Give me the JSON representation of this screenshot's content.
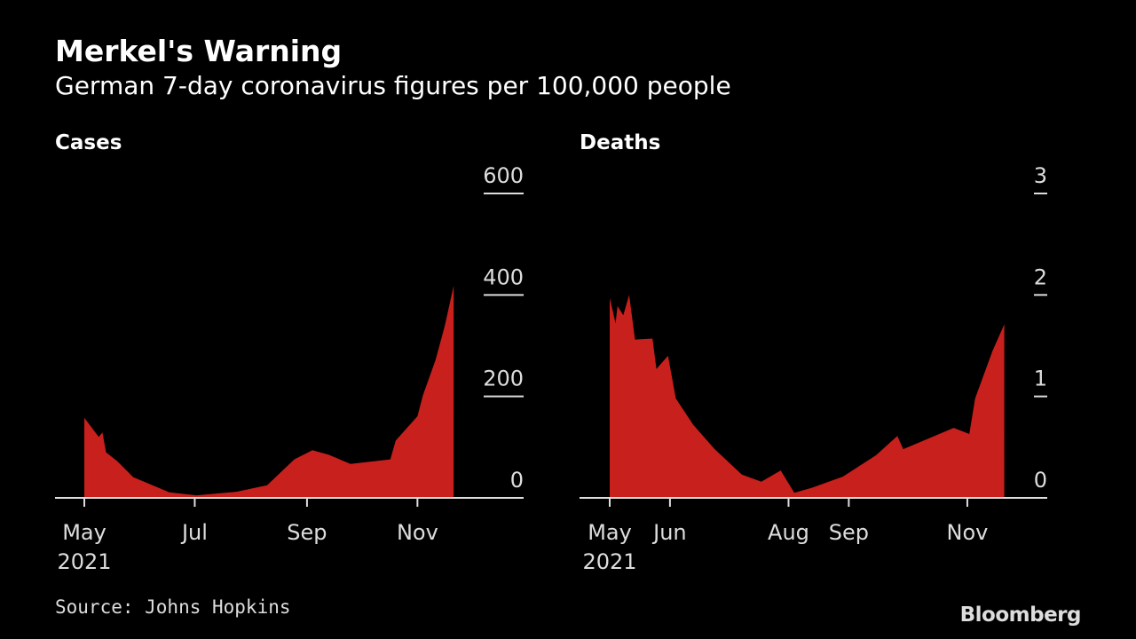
{
  "title": "Merkel's Warning",
  "subtitle": "German 7-day coronavirus figures per 100,000 people",
  "source": "Source: Johns Hopkins",
  "logo": "Bloomberg",
  "colors": {
    "area": "#c8201c",
    "axis": "#dddddd",
    "background": "#000000"
  },
  "chart_data": [
    {
      "type": "area",
      "title": "Cases",
      "x_unit": "days since 2021-05-01",
      "ylim": [
        0,
        600
      ],
      "yticks": [
        0,
        200,
        400,
        600
      ],
      "xticks": [
        {
          "day": 0,
          "label": "May",
          "sub": "2021"
        },
        {
          "day": 61,
          "label": "Jul"
        },
        {
          "day": 123,
          "label": "Sep"
        },
        {
          "day": 184,
          "label": "Nov"
        }
      ],
      "xmax": 240,
      "x": [
        0,
        8,
        10,
        12,
        18,
        27,
        33,
        47,
        62,
        84,
        101,
        116,
        126,
        135,
        147,
        169,
        172,
        184,
        187,
        194,
        199,
        204
      ],
      "values": [
        158,
        120,
        129,
        90,
        73,
        41,
        32,
        11,
        5,
        12,
        25,
        76,
        94,
        85,
        67,
        76,
        113,
        161,
        202,
        272,
        338,
        418
      ]
    },
    {
      "type": "area",
      "title": "Deaths",
      "x_unit": "days since 2021-05-01",
      "ylim": [
        0,
        3
      ],
      "yticks": [
        0,
        1,
        2,
        3
      ],
      "xticks": [
        {
          "day": 0,
          "label": "May",
          "sub": "2021"
        },
        {
          "day": 31,
          "label": "Jun"
        },
        {
          "day": 92,
          "label": "Aug"
        },
        {
          "day": 123,
          "label": "Sep"
        },
        {
          "day": 184,
          "label": "Nov"
        }
      ],
      "xmax": 226,
      "x": [
        0,
        3,
        4,
        7,
        10,
        13,
        22,
        24,
        30,
        34,
        43,
        54,
        68,
        78,
        88,
        95,
        104,
        120,
        137,
        148,
        151,
        177,
        185,
        188,
        197,
        203
      ],
      "values": [
        1.97,
        1.72,
        1.89,
        1.8,
        2.0,
        1.56,
        1.57,
        1.27,
        1.4,
        0.98,
        0.72,
        0.48,
        0.23,
        0.16,
        0.27,
        0.05,
        0.1,
        0.21,
        0.42,
        0.61,
        0.48,
        0.69,
        0.63,
        0.98,
        1.45,
        1.71
      ]
    }
  ]
}
